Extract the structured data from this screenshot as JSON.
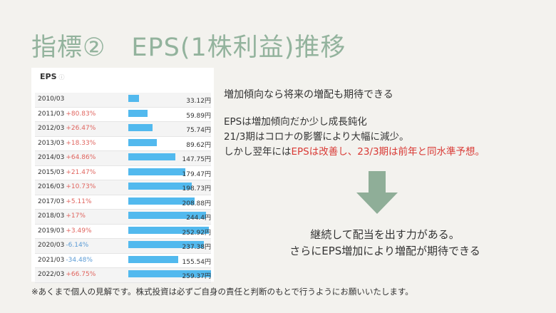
{
  "title": "指標②　EPS(1株利益)推移",
  "card": {
    "header": "EPS",
    "info_icon": "ⓘ",
    "rows": [
      {
        "year": "2010/03",
        "change": "",
        "value": "33.12円"
      },
      {
        "year": "2011/03",
        "change": "+80.83%",
        "value": "59.89円"
      },
      {
        "year": "2012/03",
        "change": "+26.47%",
        "value": "75.74円"
      },
      {
        "year": "2013/03",
        "change": "+18.33%",
        "value": "89.62円"
      },
      {
        "year": "2014/03",
        "change": "+64.86%",
        "value": "147.75円"
      },
      {
        "year": "2015/03",
        "change": "+21.47%",
        "value": "179.47円"
      },
      {
        "year": "2016/03",
        "change": "+10.73%",
        "value": "198.73円"
      },
      {
        "year": "2017/03",
        "change": "+5.11%",
        "value": "208.88円"
      },
      {
        "year": "2018/03",
        "change": "+17%",
        "value": "244.4円"
      },
      {
        "year": "2019/03",
        "change": "+3.49%",
        "value": "252.92円"
      },
      {
        "year": "2020/03",
        "change": "-6.14%",
        "value": "237.38円"
      },
      {
        "year": "2021/03",
        "change": "-34.48%",
        "value": "155.54円"
      },
      {
        "year": "2022/03",
        "change": "+66.75%",
        "value": "259.37円"
      }
    ]
  },
  "chart_data": {
    "type": "bar",
    "categories": [
      "2010/03",
      "2011/03",
      "2012/03",
      "2013/03",
      "2014/03",
      "2015/03",
      "2016/03",
      "2017/03",
      "2018/03",
      "2019/03",
      "2020/03",
      "2021/03",
      "2022/03"
    ],
    "values": [
      33.12,
      59.89,
      75.74,
      89.62,
      147.75,
      179.47,
      198.73,
      208.88,
      244.4,
      252.92,
      237.38,
      155.54,
      259.37
    ],
    "title": "EPS"
  },
  "lead": "増加傾向なら将来の増配も期待できる",
  "paragraph": {
    "line1": "EPSは増加傾向だか少し成長鈍化",
    "line2": "21/3期はコロナの影響により大幅に減少。",
    "line3_plain": "しかし翌年には",
    "line3_red": "EPSは改善し、23/3期は前年と同水準予想。"
  },
  "conclusion": {
    "line1": "継続して配当を出す力がある。",
    "line2": "さらにEPS増加により増配が期待できる"
  },
  "footnote": "※あくまで個人の見解です。株式投資は必ずご自身の責任と判断のもとで行うようにお願いいたします。",
  "colors": {
    "title": "#93b39d",
    "bar": "#52b9ee",
    "positive": "#e0645e",
    "negative": "#5b9bd5",
    "highlight": "#d93a35",
    "arrow": "#8fae98"
  }
}
